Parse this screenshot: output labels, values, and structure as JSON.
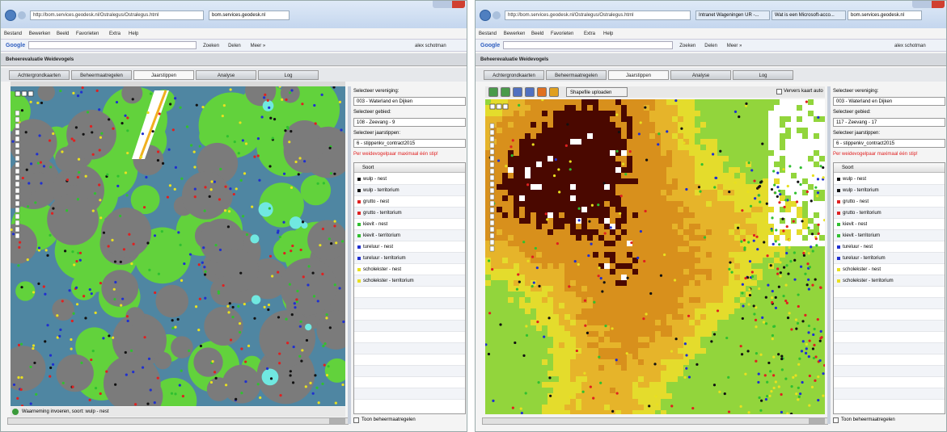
{
  "windows": [
    {
      "address": "http://bom.services.geodesk.nl/Ostralegus/Ostralegus.html",
      "browser_tabs": [
        "bom.services.geodesk.nl"
      ],
      "menu": [
        "Bestand",
        "Bewerken",
        "Beeld",
        "Favorieten",
        "Extra",
        "Help"
      ],
      "search_label": "Google",
      "toolbar_buttons": [
        "Zoeken",
        "Delen",
        "Meer »"
      ],
      "user": "alex schotman",
      "app_title": "Beheerevaluatie Weidevogels",
      "app_tabs": [
        "Achtergrondkaarten",
        "Beheermaatregelen",
        "Jaarstippen",
        "Analyse",
        "Log"
      ],
      "panel": {
        "vereniging_label": "Selecteer vereniging:",
        "vereniging": "003 - Waterland en Dijken",
        "gebied_label": "Selecteer gebied:",
        "gebied": "108 - Zeevang - 9",
        "jaarstippen_label": "Selecteer jaarstippen:",
        "jaarstippen": "6 - stippenkv_contract2015",
        "warning": "Per weidevogelpaar maximaal één stip!",
        "list_header": "Soort",
        "species": [
          {
            "name": "wulp - nest",
            "color": "#111111"
          },
          {
            "name": "wulp - territorium",
            "color": "#111111"
          },
          {
            "name": "grutto - nest",
            "color": "#e02020"
          },
          {
            "name": "grutto - territorium",
            "color": "#e02020"
          },
          {
            "name": "kievit - nest",
            "color": "#30c030"
          },
          {
            "name": "kievit - territorium",
            "color": "#30c030"
          },
          {
            "name": "tureluur - nest",
            "color": "#2030d0"
          },
          {
            "name": "tureluur - territorium",
            "color": "#2030d0"
          },
          {
            "name": "scholekster - nest",
            "color": "#e8e020"
          },
          {
            "name": "scholekster - territorium",
            "color": "#e8e020"
          }
        ],
        "checkbox": "Toon beheermaatregelen"
      },
      "status": "Waarneming invoeren, soort: wulp - nest"
    },
    {
      "address": "http://bom.services.geodesk.nl/Ostralegus/Ostralegus.html",
      "browser_tabs": [
        "Intranet Wageningen UR -...",
        "Wat is een Microsoft-acco...",
        "bom.services.geodesk.nl"
      ],
      "menu": [
        "Bestand",
        "Bewerken",
        "Beeld",
        "Favorieten",
        "Extra",
        "Help"
      ],
      "search_label": "Google",
      "toolbar_buttons": [
        "Zoeken",
        "Delen",
        "Meer »"
      ],
      "user": "alex schotman",
      "app_title": "Beheerevaluatie Weidevogels",
      "app_tabs": [
        "Achtergrondkaarten",
        "Beheermaatregelen",
        "Jaarstippen",
        "Analyse",
        "Log"
      ],
      "map_button": "Shapefile uploaden",
      "refresh_checkbox": "Ververs kaart auto",
      "panel": {
        "vereniging_label": "Selecteer vereniging:",
        "vereniging": "003 - Waterland en Dijken",
        "gebied_label": "Selecteer gebied:",
        "gebied": "117 - Zeevang - 17",
        "jaarstippen_label": "Selecteer jaarstippen:",
        "jaarstippen": "6 - stippenkv_contract2015",
        "warning": "Per weidevogelpaar maximaal één stip!",
        "list_header": "Soort",
        "species": [
          {
            "name": "wulp - nest",
            "color": "#111111"
          },
          {
            "name": "wulp - territorium",
            "color": "#111111"
          },
          {
            "name": "grutto - nest",
            "color": "#e02020"
          },
          {
            "name": "grutto - territorium",
            "color": "#e02020"
          },
          {
            "name": "kievit - nest",
            "color": "#30c030"
          },
          {
            "name": "kievit - territorium",
            "color": "#30c030"
          },
          {
            "name": "tureluur - nest",
            "color": "#2030d0"
          },
          {
            "name": "tureluur - territorium",
            "color": "#2030d0"
          },
          {
            "name": "scholekster - nest",
            "color": "#e8e020"
          },
          {
            "name": "scholekster - territorium",
            "color": "#e8e020"
          }
        ],
        "checkbox": "Toon beheermaatregelen"
      }
    }
  ]
}
